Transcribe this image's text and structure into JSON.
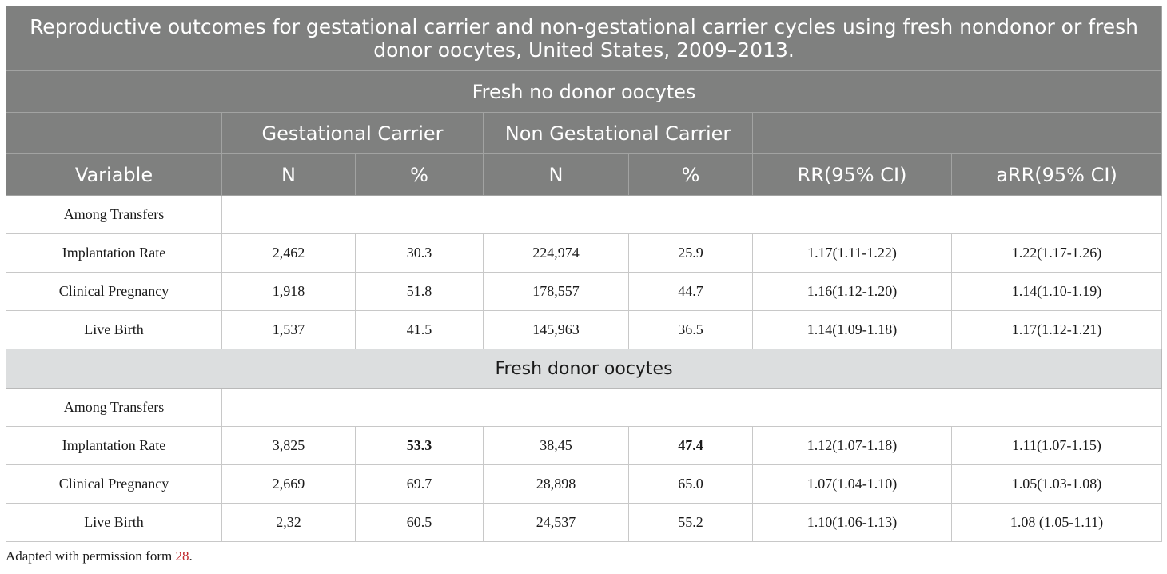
{
  "table": {
    "title": "Reproductive outcomes for gestational carrier and non-gestational carrier cycles using fresh nondonor or fresh donor oocytes, United States, 2009–2013.",
    "section1_label": "Fresh no donor oocytes",
    "group_gc": "Gestational Carrier",
    "group_ngc": "Non Gestational Carrier",
    "columns": [
      "Variable",
      "N",
      "%",
      "N",
      "%",
      "RR(95% CI)",
      "aRR(95% CI)"
    ],
    "section1": {
      "subheader": "Among Transfers",
      "rows": [
        [
          "Implantation Rate",
          "2,462",
          "30.3",
          "224,974",
          "25.9",
          "1.17(1.11-1.22)",
          "1.22(1.17-1.26)"
        ],
        [
          "Clinical Pregnancy",
          "1,918",
          "51.8",
          "178,557",
          "44.7",
          "1.16(1.12-1.20)",
          "1.14(1.10-1.19)"
        ],
        [
          "Live Birth",
          "1,537",
          "41.5",
          "145,963",
          "36.5",
          "1.14(1.09-1.18)",
          "1.17(1.12-1.21)"
        ]
      ]
    },
    "section2_label": "Fresh donor oocytes",
    "section2": {
      "subheader": "Among Transfers",
      "rows": [
        [
          "Implantation Rate",
          "3,825",
          "53.3",
          "38,45",
          "47.4",
          "1.12(1.07-1.18)",
          "1.11(1.07-1.15)"
        ],
        [
          "Clinical Pregnancy",
          "2,669",
          "69.7",
          "28,898",
          "65.0",
          "1.07(1.04-1.10)",
          "1.05(1.03-1.08)"
        ],
        [
          "Live Birth",
          "2,32",
          "60.5",
          "24,537",
          "55.2",
          "1.10(1.06-1.13)",
          "1.08 (1.05-1.11)"
        ]
      ]
    }
  },
  "footnote": {
    "text": "Adapted with permission form ",
    "ref": "28",
    "end": "."
  }
}
